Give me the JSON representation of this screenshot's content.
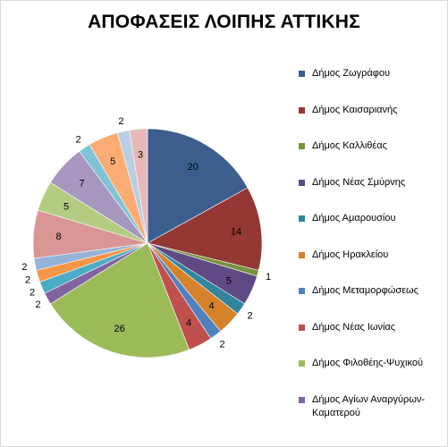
{
  "chart_data": {
    "type": "pie",
    "title": "ΑΠΟΦΑΣΕΙΣ ΛΟΙΠΗΣ ΑΤΤΙΚΗΣ",
    "start_angle_deg": 0,
    "direction": "clockwise",
    "legend_position": "right",
    "slices": [
      {
        "label": "Δήμος Ζωγράφου",
        "value": 20,
        "color": "#3B5E8E"
      },
      {
        "label": "Δήμος Καισαριανής",
        "value": 14,
        "color": "#953735"
      },
      {
        "label": "Δήμος Καλλιθέας",
        "value": 1,
        "color": "#77933C"
      },
      {
        "label": "Δήμος Νέας Σμύρνης",
        "value": 5,
        "color": "#5F4A85"
      },
      {
        "label": "Δήμος Αμαρουσίου",
        "value": 2,
        "color": "#31859C"
      },
      {
        "label": "Δήμος Ηρακλείου",
        "value": 4,
        "color": "#D6822A"
      },
      {
        "label": "Δήμος Μεταμορφώσεως",
        "value": 2,
        "color": "#4F81BD"
      },
      {
        "label": "Δήμος Νέας Ιωνίας",
        "value": 4,
        "color": "#C0504D"
      },
      {
        "label": "Δήμος Φιλοθέης-Ψυχικού",
        "value": 26,
        "color": "#9BBB59"
      },
      {
        "label": "Δήμος Αγίων Αναργύρων-Καματερού",
        "value": 2,
        "color": "#8064A2"
      },
      {
        "label": "",
        "value": 2,
        "color": "#4BACC6"
      },
      {
        "label": "",
        "value": 2,
        "color": "#F79646"
      },
      {
        "label": "",
        "value": 2,
        "color": "#95B3D7"
      },
      {
        "label": "",
        "value": 8,
        "color": "#D99694"
      },
      {
        "label": "",
        "value": 5,
        "color": "#B3CC82"
      },
      {
        "label": "",
        "value": 7,
        "color": "#A597BE"
      },
      {
        "label": "",
        "value": 2,
        "color": "#7FC4D4"
      },
      {
        "label": "",
        "value": 5,
        "color": "#FAAC74"
      },
      {
        "label": "",
        "value": 2,
        "color": "#B9CDE5"
      },
      {
        "label": "",
        "value": 3,
        "color": "#E6B9B8"
      }
    ]
  }
}
